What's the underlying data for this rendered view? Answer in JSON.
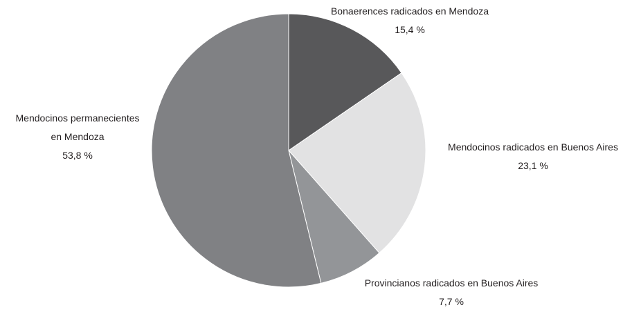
{
  "chart_data": {
    "type": "pie",
    "categories": [
      "Bonaerences radicados en Mendoza",
      "Mendocinos radicados en Buenos Aires",
      "Provincianos radicados en Buenos Aires",
      "Mendocinos permanecientes en Mendoza"
    ],
    "values": [
      15.4,
      23.1,
      7.7,
      53.8
    ],
    "value_labels": [
      "15,4 %",
      "23,1 %",
      "7,7 %",
      "53,8 %"
    ],
    "colors": [
      "#58585a",
      "#e2e2e3",
      "#939598",
      "#808184"
    ]
  }
}
